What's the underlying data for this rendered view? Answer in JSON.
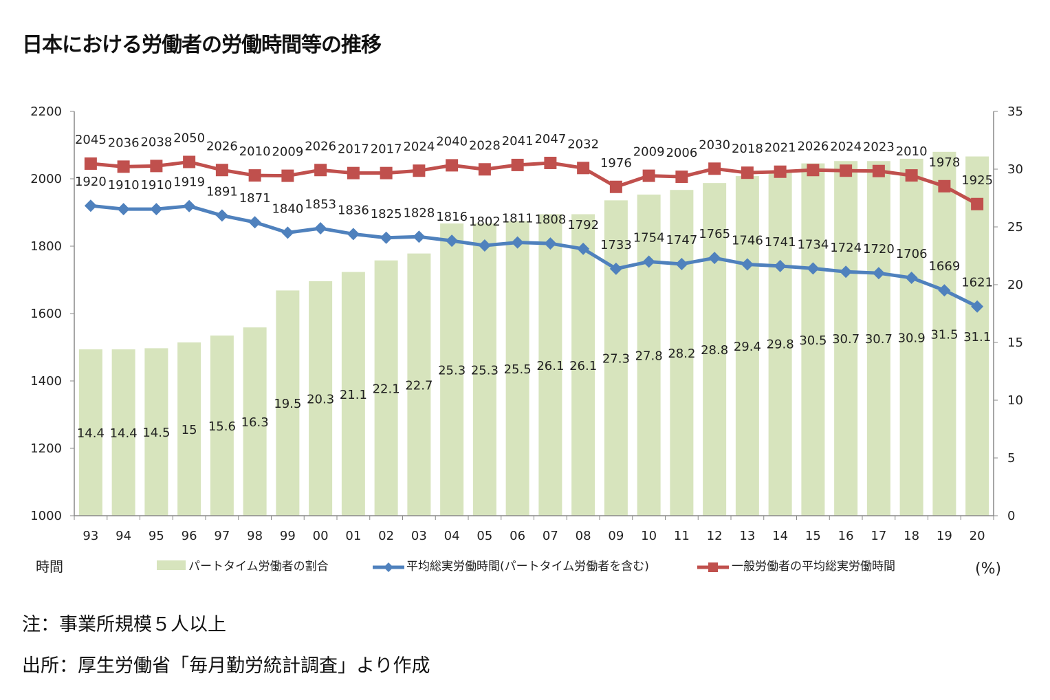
{
  "title": "日本における労働者の労働時間等の推移",
  "notes": [
    "注：事業所規模５人以上",
    "出所：厚生労働省「毎月勤労統計調査」より作成"
  ],
  "chart_data": {
    "type": "bar+line",
    "categories": [
      "93",
      "94",
      "95",
      "96",
      "97",
      "98",
      "99",
      "00",
      "01",
      "02",
      "03",
      "04",
      "05",
      "06",
      "07",
      "08",
      "09",
      "10",
      "11",
      "12",
      "13",
      "14",
      "15",
      "16",
      "17",
      "18",
      "19",
      "20"
    ],
    "left_axis": {
      "label": "時間",
      "range": [
        1000,
        2200
      ],
      "ticks": [
        1000,
        1200,
        1400,
        1600,
        1800,
        2000,
        2200
      ]
    },
    "right_axis": {
      "label": "(%)",
      "range": [
        0,
        35
      ],
      "ticks": [
        0,
        5,
        10,
        15,
        20,
        25,
        30,
        35
      ]
    },
    "grid": false,
    "legend_position": "bottom",
    "series": [
      {
        "name": "パートタイム労働者の割合",
        "type": "bar",
        "axis": "right",
        "color": "#d7e4bd",
        "values": [
          14.4,
          14.4,
          14.5,
          15,
          15.6,
          16.3,
          19.5,
          20.3,
          21.1,
          22.1,
          22.7,
          25.3,
          25.3,
          25.5,
          26.1,
          26.1,
          27.3,
          27.8,
          28.2,
          28.8,
          29.4,
          29.8,
          30.5,
          30.7,
          30.7,
          30.9,
          31.5,
          31.1
        ]
      },
      {
        "name": "平均総実労働時間(パートタイム労働者を含む)",
        "type": "line",
        "axis": "left",
        "color": "#4f81bd",
        "marker": "diamond",
        "values": [
          1920,
          1910,
          1910,
          1919,
          1891,
          1871,
          1840,
          1853,
          1836,
          1825,
          1828,
          1816,
          1802,
          1811,
          1808,
          1792,
          1733,
          1754,
          1747,
          1765,
          1746,
          1741,
          1734,
          1724,
          1720,
          1706,
          1669,
          1621
        ]
      },
      {
        "name": "一般労働者の平均総実労働時間",
        "type": "line",
        "axis": "left",
        "color": "#c0504d",
        "marker": "square",
        "values": [
          2045,
          2036,
          2038,
          2050,
          2026,
          2010,
          2009,
          2026,
          2017,
          2017,
          2024,
          2040,
          2028,
          2041,
          2047,
          2032,
          1976,
          2009,
          2006,
          2030,
          2018,
          2021,
          2026,
          2024,
          2023,
          2010,
          1978,
          1925
        ]
      }
    ]
  }
}
